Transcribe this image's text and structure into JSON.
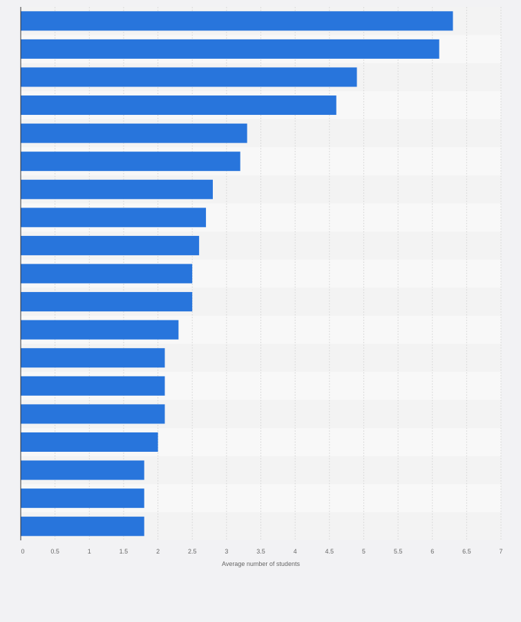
{
  "chart_data": {
    "type": "bar",
    "orientation": "horizontal",
    "title": "",
    "xlabel": "Average number of students",
    "ylabel": "",
    "xlim": [
      0,
      7
    ],
    "x_ticks": [
      "0",
      "0.5",
      "1",
      "1.5",
      "2",
      "2.5",
      "3",
      "3.5",
      "4",
      "4.5",
      "5",
      "5.5",
      "6",
      "6.5",
      "7"
    ],
    "categories": [
      "",
      "",
      "",
      "",
      "",
      "",
      "",
      "",
      "",
      "",
      "",
      "",
      "",
      "",
      "",
      "",
      "",
      "",
      ""
    ],
    "values": [
      6.3,
      6.1,
      4.9,
      4.6,
      3.3,
      3.2,
      2.8,
      2.7,
      2.6,
      2.5,
      2.5,
      2.3,
      2.1,
      2.1,
      2.1,
      2.0,
      1.8,
      1.8,
      1.8
    ],
    "grid": true,
    "legend": "none",
    "colors": {
      "bar": "#2875dc",
      "band_even": "#f3f3f3",
      "band_odd": "#f8f8f8",
      "page": "#f2f2f4",
      "grid": "#d9d9d9",
      "axis": "#333333",
      "text": "#666666"
    }
  }
}
